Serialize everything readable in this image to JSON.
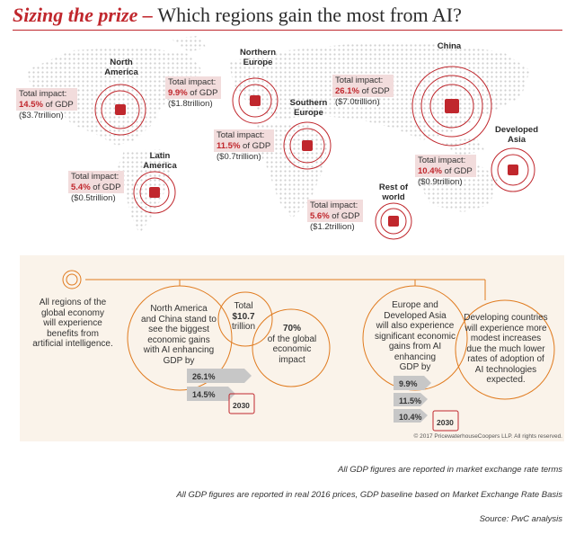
{
  "title": {
    "emphasis": "Sizing the prize",
    "separator": " – ",
    "rest": "Which regions gain the most from AI?"
  },
  "regions": [
    {
      "name_l1": "North",
      "name_l2": "America",
      "label": "Total impact:",
      "pct": "14.5%",
      "pct_suffix": " of GDP",
      "usd": "($3.7trillion)"
    },
    {
      "name_l1": "Northern",
      "name_l2": "Europe",
      "label": "Total impact:",
      "pct": "9.9%",
      "pct_suffix": " of GDP",
      "usd": "($1.8trillion)"
    },
    {
      "name_l1": "Southern",
      "name_l2": "Europe",
      "label": "Total impact:",
      "pct": "11.5%",
      "pct_suffix": " of GDP",
      "usd": "($0.7trillion)"
    },
    {
      "name_l1": "China",
      "name_l2": "",
      "label": "Total impact:",
      "pct": "26.1%",
      "pct_suffix": " of GDP",
      "usd": "($7.0trillion)"
    },
    {
      "name_l1": "Developed",
      "name_l2": "Asia",
      "label": "Total impact:",
      "pct": "10.4%",
      "pct_suffix": " of GDP",
      "usd": "($0.9trillion)"
    },
    {
      "name_l1": "Latin",
      "name_l2": "America",
      "label": "Total impact:",
      "pct": "5.4%",
      "pct_suffix": " of GDP",
      "usd": "($0.5trillion)"
    },
    {
      "name_l1": "Rest of",
      "name_l2": "world",
      "label": "Total impact:",
      "pct": "5.6%",
      "pct_suffix": " of GDP",
      "usd": "($1.2trillion)"
    }
  ],
  "bottom": {
    "intro": [
      "All regions of the",
      "global economy",
      "will experience",
      "benefits from",
      "artificial intelligence."
    ],
    "na_china": [
      "North America",
      "and China stand to",
      "see the biggest",
      "economic gains",
      "with AI enhancing",
      "GDP by"
    ],
    "total_l1": "Total",
    "total_l2": "$10.7",
    "total_l3": "trillion",
    "share": [
      "70%",
      "of the global",
      "economic",
      "impact"
    ],
    "na_china_bars": [
      "26.1%",
      "14.5%"
    ],
    "europe": [
      "Europe and",
      "Developed Asia",
      "will also experience",
      "significant economic",
      "gains from AI",
      "enhancing",
      "GDP by"
    ],
    "europe_bars": [
      "9.9%",
      "11.5%",
      "10.4%"
    ],
    "developing": [
      "Developing countries",
      "will experience more",
      "modest increases",
      "due the much lower",
      "rates of adoption of",
      "AI technologies",
      "expected."
    ],
    "year": "2030"
  },
  "copyright": "© 2017 PricewaterhouseCoopers LLP. All rights reserved.",
  "footnotes": [
    "All GDP figures are reported in market exchange rate terms",
    "All GDP figures are reported in real 2016 prices, GDP baseline based on Market Exchange Rate Basis",
    "Source: PwC analysis"
  ],
  "colors": {
    "brand_red": "#c0272d",
    "orange": "#e07b1f",
    "pink_box": "#f2dcdc",
    "map_dots": "#cfcfcf"
  }
}
